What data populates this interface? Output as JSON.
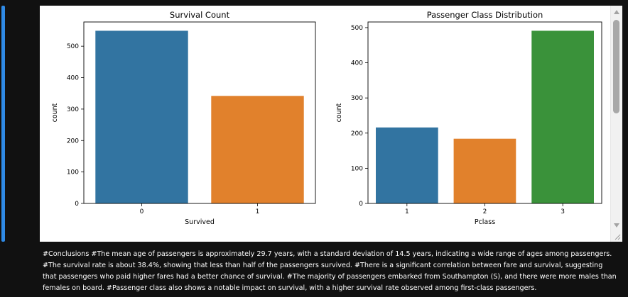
{
  "conclusion_text": "#Conclusions #The mean age of passengers is approximately 29.7 years, with a standard deviation of 14.5 years, indicating a wide range of ages among passengers. #The survival rate is about 38.4%, showing that less than half of the passengers survived. #There is a significant correlation between fare and survival, suggesting that passengers who paid higher fares had a better chance of survival. #The majority of passengers embarked from Southampton (S), and there were more males than females on board. #Passenger class also shows a notable impact on survival, with a higher survival rate observed among first-class passengers.",
  "colors": {
    "bar_blue": "#3274a1",
    "bar_orange": "#e1812c",
    "bar_green": "#3a923a",
    "cell_accent": "#2f8ae5"
  },
  "chart_data": [
    {
      "type": "bar",
      "title": "Survival Count",
      "xlabel": "Survived",
      "ylabel": "count",
      "categories": [
        "0",
        "1"
      ],
      "values": [
        549,
        342
      ],
      "colors": [
        "#3274a1",
        "#e1812c"
      ],
      "ylim": [
        0,
        577
      ],
      "yticks": [
        0,
        100,
        200,
        300,
        400,
        500
      ]
    },
    {
      "type": "bar",
      "title": "Passenger Class Distribution",
      "xlabel": "Pclass",
      "ylabel": "count",
      "categories": [
        "1",
        "2",
        "3"
      ],
      "values": [
        216,
        184,
        491
      ],
      "colors": [
        "#3274a1",
        "#e1812c",
        "#3a923a"
      ],
      "ylim": [
        0,
        516
      ],
      "yticks": [
        0,
        100,
        200,
        300,
        400,
        500
      ]
    }
  ]
}
